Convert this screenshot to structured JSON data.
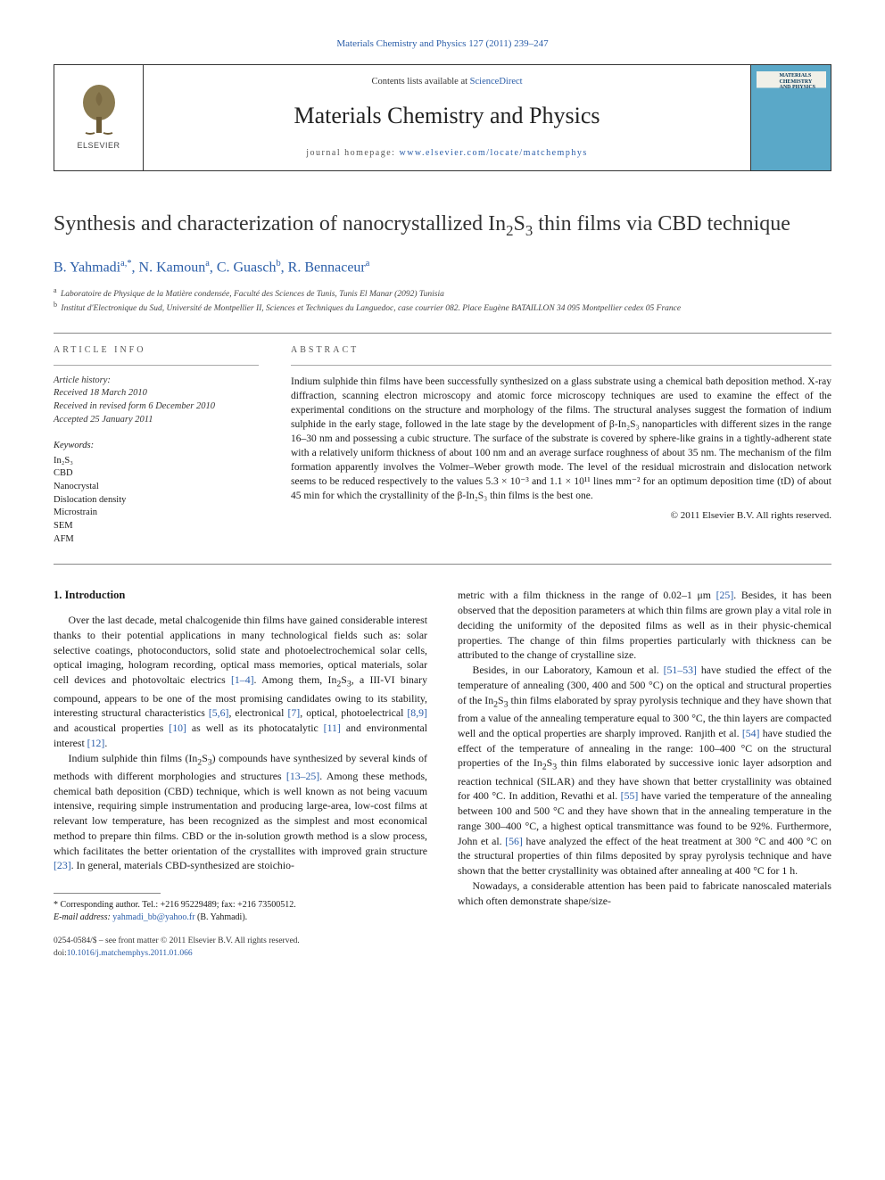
{
  "colors": {
    "link": "#2a5da8",
    "text": "#1a1a1a",
    "rule": "#888888",
    "banner_border": "#333333",
    "cover_bg": "#5aa8c8",
    "background": "#ffffff"
  },
  "journal_reference": "Materials Chemistry and Physics 127 (2011) 239–247",
  "banner": {
    "publisher": "ELSEVIER",
    "contents_available_prefix": "Contents lists available at ",
    "contents_available_link": "ScienceDirect",
    "journal_name": "Materials Chemistry and Physics",
    "homepage_label": "journal homepage: ",
    "homepage_url": "www.elsevier.com/locate/matchemphys",
    "cover_title": "MATERIALS CHEMISTRY AND PHYSICS"
  },
  "paper": {
    "title_html": "Synthesis and characterization of nanocrystallized In<sub>2</sub>S<sub>3</sub> thin films via CBD technique",
    "authors_html": "B. Yahmadi<sup>a,*</sup>, N. Kamoun<sup>a</sup>, C. Guasch<sup>b</sup>, R. Bennaceur<sup>a</sup>",
    "affiliations": [
      "Laboratoire de Physique de la Matière condensée, Faculté des Sciences de Tunis, Tunis El Manar (2092) Tunisia",
      "Institut d'Electronique du Sud, Université de Montpellier II, Sciences et Techniques du Languedoc, case courrier 082. Place Eugène BATAILLON 34 095 Montpellier cedex 05 France"
    ],
    "affiliation_markers": [
      "a",
      "b"
    ]
  },
  "article_info": {
    "heading": "article info",
    "history_label": "Article history:",
    "received": "Received 18 March 2010",
    "revised": "Received in revised form 6 December 2010",
    "accepted": "Accepted 25 January 2011",
    "keywords_label": "Keywords:",
    "keywords": [
      "In₂S₃",
      "CBD",
      "Nanocrystal",
      "Dislocation density",
      "Microstrain",
      "SEM",
      "AFM"
    ]
  },
  "abstract": {
    "heading": "abstract",
    "text": "Indium sulphide thin films have been successfully synthesized on a glass substrate using a chemical bath deposition method. X-ray diffraction, scanning electron microscopy and atomic force microscopy techniques are used to examine the effect of the experimental conditions on the structure and morphology of the films. The structural analyses suggest the formation of indium sulphide in the early stage, followed in the late stage by the development of β-In₂S₃ nanoparticles with different sizes in the range 16–30 nm and possessing a cubic structure. The surface of the substrate is covered by sphere-like grains in a tightly-adherent state with a relatively uniform thickness of about 100 nm and an average surface roughness of about 35 nm. The mechanism of the film formation apparently involves the Volmer–Weber growth mode. The level of the residual microstrain and dislocation network seems to be reduced respectively to the values 5.3 × 10⁻³ and 1.1 × 10¹¹ lines mm⁻² for an optimum deposition time (tD) of about 45 min for which the crystallinity of the β-In₂S₃ thin films is the best one.",
    "copyright": "© 2011 Elsevier B.V. All rights reserved."
  },
  "body": {
    "section_heading": "1.  Introduction",
    "para1_html": "Over the last decade, metal chalcogenide thin films have gained considerable interest thanks to their potential applications in many technological fields such as: solar selective coatings, photoconductors, solid state and photoelectrochemical solar cells, optical imaging, hologram recording, optical mass memories, optical materials, solar cell devices and photovoltaic electrics <span class='ref-link'>[1–4]</span>. Among them, In<sub>2</sub>S<sub>3</sub>, a III-VI binary compound, appears to be one of the most promising candidates owing to its stability, interesting structural characteristics <span class='ref-link'>[5,6]</span>, electronical <span class='ref-link'>[7]</span>, optical, photoelectrical <span class='ref-link'>[8,9]</span> and acoustical properties <span class='ref-link'>[10]</span> as well as its photocatalytic <span class='ref-link'>[11]</span> and environmental interest <span class='ref-link'>[12]</span>.",
    "para2_html": "Indium sulphide thin films (In<sub>2</sub>S<sub>3</sub>) compounds have synthesized by several kinds of methods with different morphologies and structures <span class='ref-link'>[13–25]</span>. Among these methods, chemical bath deposition (CBD) technique, which is well known as not being vacuum intensive, requiring simple instrumentation and producing large-area, low-cost films at relevant low temperature, has been recognized as the simplest and most economical method to prepare thin films. CBD or the in-solution growth method is a slow process, which facilitates the better orientation of the crystallites with improved grain structure <span class='ref-link'>[23]</span>. In general, materials CBD-synthesized are stoichio-",
    "para3_html": "metric with a film thickness in the range of 0.02–1 μm <span class='ref-link'>[25]</span>. Besides, it has been observed that the deposition parameters at which thin films are grown play a vital role in deciding the uniformity of the deposited films as well as in their physic-chemical properties. The change of thin films properties particularly with thickness can be attributed to the change of crystalline size.",
    "para4_html": "Besides, in our Laboratory, Kamoun et al. <span class='ref-link'>[51–53]</span> have studied the effect of the temperature of annealing (300, 400 and 500 °C) on the optical and structural properties of the In<sub>2</sub>S<sub>3</sub> thin films elaborated by spray pyrolysis technique and they have shown that from a value of the annealing temperature equal to 300 °C, the thin layers are compacted well and the optical properties are sharply improved. Ranjith et al. <span class='ref-link'>[54]</span> have studied the effect of the temperature of annealing in the range: 100–400 °C on the structural properties of the In<sub>2</sub>S<sub>3</sub> thin films elaborated by successive ionic layer adsorption and reaction technical (SILAR) and they have shown that better crystallinity was obtained for 400 °C. In addition, Revathi et al. <span class='ref-link'>[55]</span> have varied the temperature of the annealing between 100 and 500 °C and they have shown that in the annealing temperature in the range 300–400 °C, a highest optical transmittance was found to be 92%. Furthermore, John et al. <span class='ref-link'>[56]</span> have analyzed the effect of the heat treatment at 300 °C and 400 °C on the structural properties of thin films deposited by spray pyrolysis technique and have shown that the better crystallinity was obtained after annealing at 400 °C for 1 h.",
    "para5_html": "Nowadays, a considerable attention has been paid to fabricate nanoscaled materials which often demonstrate shape/size-"
  },
  "footnote": {
    "corresponding": "* Corresponding author. Tel.: +216 95229489; fax: +216 73500512.",
    "email_label": "E-mail address: ",
    "email": "yahmadi_bb@yahoo.fr",
    "email_person": " (B. Yahmadi)."
  },
  "footer": {
    "issn_line": "0254-0584/$ – see front matter © 2011 Elsevier B.V. All rights reserved.",
    "doi_label": "doi:",
    "doi": "10.1016/j.matchemphys.2011.01.066"
  }
}
